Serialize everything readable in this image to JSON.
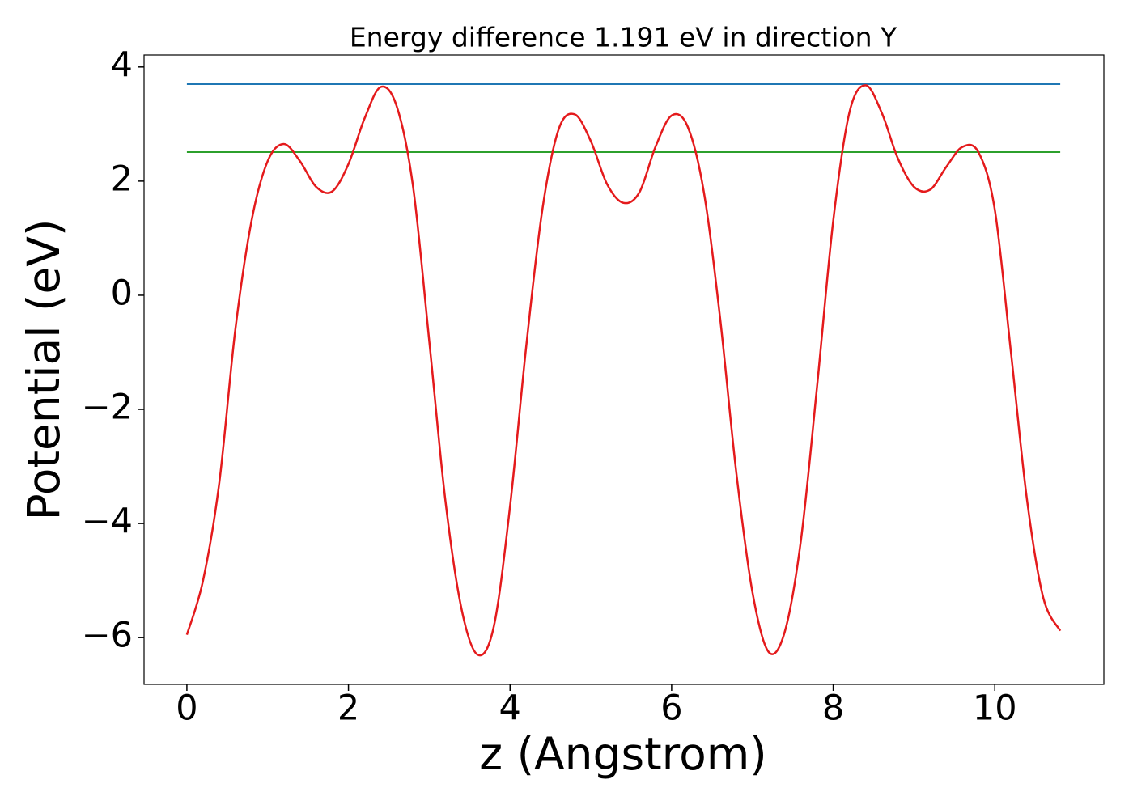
{
  "chart_data": {
    "type": "line",
    "title": "Energy difference 1.191 eV in direction Y",
    "x_label": "z (Angstrom)",
    "y_label": "Potential (eV)",
    "x": [
      0,
      0.2,
      0.4,
      0.6,
      0.8,
      1.0,
      1.2,
      1.4,
      1.6,
      1.8,
      2.0,
      2.2,
      2.4,
      2.6,
      2.8,
      3.0,
      3.2,
      3.4,
      3.6,
      3.8,
      4.0,
      4.2,
      4.4,
      4.6,
      4.8,
      5.0,
      5.2,
      5.4,
      5.6,
      5.8,
      6.0,
      6.2,
      6.4,
      6.6,
      6.8,
      7.0,
      7.2,
      7.4,
      7.6,
      7.8,
      8.0,
      8.2,
      8.4,
      8.6,
      8.8,
      9.0,
      9.2,
      9.4,
      9.6,
      9.8,
      10.0,
      10.2,
      10.4,
      10.6,
      10.81
    ],
    "series": [
      {
        "color": "#e41a1c",
        "values": [
          -5.95,
          -5.0,
          -3.3,
          -0.6,
          1.3,
          2.35,
          2.65,
          2.35,
          1.9,
          1.82,
          2.3,
          3.1,
          3.65,
          3.3,
          1.9,
          -0.8,
          -3.6,
          -5.5,
          -6.3,
          -5.8,
          -3.7,
          -0.9,
          1.5,
          2.9,
          3.17,
          2.7,
          1.95,
          1.62,
          1.8,
          2.6,
          3.15,
          2.95,
          1.8,
          -0.4,
          -3.1,
          -5.2,
          -6.25,
          -5.9,
          -4.3,
          -1.6,
          1.3,
          3.2,
          3.68,
          3.2,
          2.4,
          1.9,
          1.85,
          2.25,
          2.6,
          2.5,
          1.5,
          -1.0,
          -3.6,
          -5.3,
          -5.88
        ]
      }
    ],
    "hlines": [
      {
        "y": 3.7,
        "xmin": 0,
        "xmax": 10.81,
        "color": "#1f77b4"
      },
      {
        "y": 2.509,
        "xmin": 0,
        "xmax": 10.81,
        "color": "#2ca02c"
      }
    ],
    "xlim": [
      -0.53,
      11.35
    ],
    "ylim": [
      -6.82,
      4.21
    ],
    "xticks": [
      0,
      2,
      4,
      6,
      8,
      10
    ],
    "yticks": [
      {
        "value": -6,
        "label": "−6"
      },
      {
        "value": -4,
        "label": "−4"
      },
      {
        "value": -2,
        "label": "−2"
      },
      0,
      2,
      4
    ]
  }
}
